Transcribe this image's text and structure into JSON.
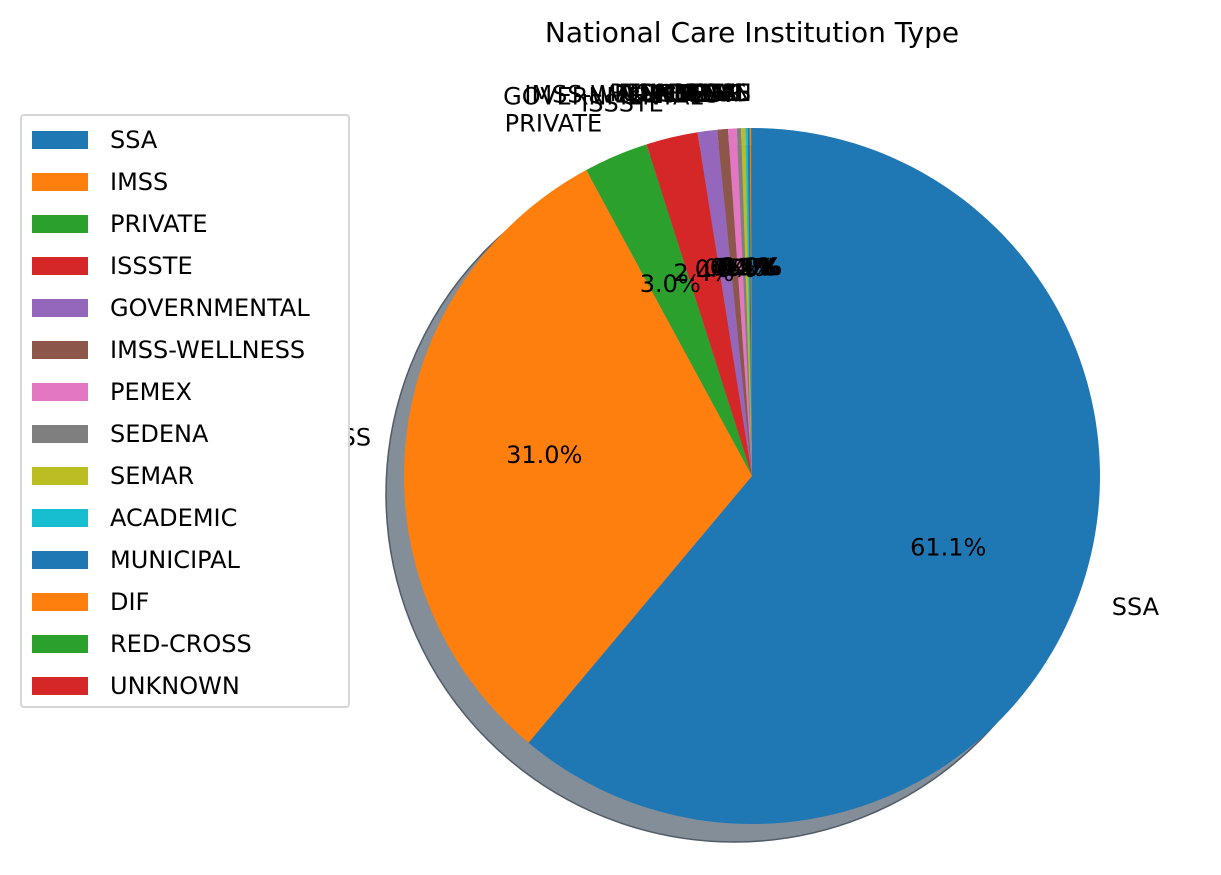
{
  "chart_data": {
    "type": "pie",
    "title": "National Care Institution Type",
    "categories": [
      "SSA",
      "IMSS",
      "PRIVATE",
      "ISSSTE",
      "GOVERNMENTAL",
      "IMSS-WELLNESS",
      "PEMEX",
      "SEDENA",
      "SEMAR",
      "ACADEMIC",
      "MUNICIPAL",
      "DIF",
      "RED-CROSS",
      "UNKNOWN"
    ],
    "values": [
      61.1,
      31.0,
      3.0,
      2.4,
      0.9,
      0.5,
      0.4,
      0.2,
      0.2,
      0.1,
      0.1,
      0.05,
      0.03,
      0.02
    ],
    "value_labels": [
      "61.1%",
      "31.0%",
      "3.0%",
      "2.4%",
      "0.9%",
      "0.5%",
      "0.4%",
      "0.2%",
      "0.2%",
      "0.1%",
      "0.1%",
      "0.0%",
      "0.0%",
      "0.0%"
    ],
    "colors": [
      "#1f77b4",
      "#ff7f0e",
      "#2ca02c",
      "#d62728",
      "#9467bd",
      "#8c564b",
      "#e377c2",
      "#7f7f7f",
      "#bcbd22",
      "#17becf",
      "#1f77b4",
      "#ff7f0e",
      "#2ca02c",
      "#d62728"
    ],
    "start_angle": 90,
    "direction": "clockwise",
    "shadow": true,
    "legend_position": "left"
  }
}
